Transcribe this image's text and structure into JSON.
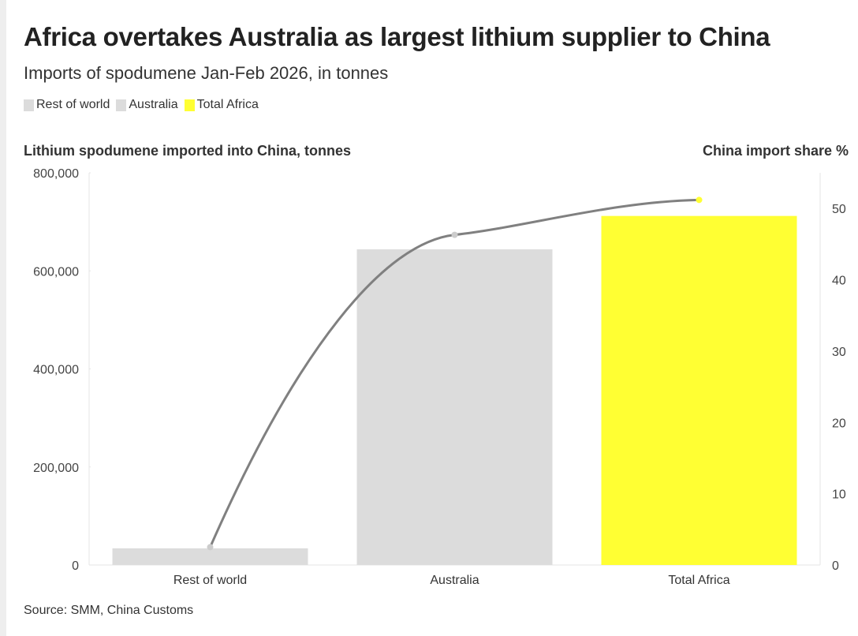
{
  "colors": {
    "rest_of_world": "#dcdcdc",
    "australia": "#dcdcdc",
    "total_africa": "#ffff33",
    "line": "#808080",
    "grid": "#e6e6e6"
  },
  "chart_data": {
    "type": "bar",
    "title": "Africa overtakes Australia as largest lithium supplier to China",
    "subtitle": "Imports of spodumene Jan-Feb 2026, in tonnes",
    "legend": [
      "Rest of world",
      "Australia",
      "Total Africa"
    ],
    "ylabel": "Lithium spodumene imported into China, tonnes",
    "y2label": "China import share %",
    "categories": [
      "Rest of world",
      "Australia",
      "Total Africa"
    ],
    "values": [
      34000,
      644000,
      712000
    ],
    "ylim": [
      0,
      800000
    ],
    "yticks": [
      0,
      200000,
      400000,
      600000,
      800000
    ],
    "ytick_labels": [
      "0",
      "200,000",
      "400,000",
      "600,000",
      "800,000"
    ],
    "share_line": {
      "name": "China import share %",
      "values": [
        2.5,
        46.3,
        51.2
      ],
      "ylim": [
        0,
        55
      ],
      "yticks": [
        0,
        10,
        20,
        30,
        40,
        50
      ],
      "ytick_labels": [
        "0",
        "10",
        "20",
        "30",
        "40",
        "50"
      ]
    },
    "source": "Source: SMM, China Customs"
  }
}
